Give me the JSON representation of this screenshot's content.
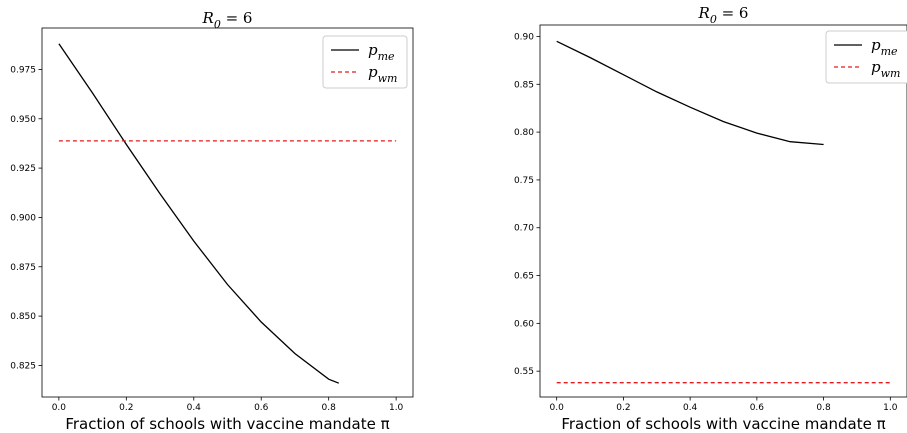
{
  "chart_data": [
    {
      "type": "line",
      "title": "R_0 = 6",
      "xlabel": "Fraction of schools with vaccine mandate π",
      "ylabel": "",
      "xlim": [
        -0.05,
        1.05
      ],
      "ylim": [
        0.809,
        0.996
      ],
      "xticks": [
        "0.0",
        "0.2",
        "0.4",
        "0.6",
        "0.8",
        "1.0"
      ],
      "yticks": [
        "0.825",
        "0.850",
        "0.875",
        "0.900",
        "0.925",
        "0.950",
        "0.975"
      ],
      "legend": "top-right",
      "series": [
        {
          "name": "p_me",
          "color": "#000000",
          "style": "solid",
          "x": [
            0.0,
            0.1,
            0.2,
            0.3,
            0.4,
            0.5,
            0.6,
            0.7,
            0.8,
            0.83
          ],
          "y": [
            0.988,
            0.963,
            0.937,
            0.912,
            0.888,
            0.866,
            0.847,
            0.831,
            0.818,
            0.816
          ]
        },
        {
          "name": "p_wm",
          "color": "#e41a1c",
          "style": "dashed",
          "x": [
            0.0,
            1.0
          ],
          "y": [
            0.9388,
            0.9388
          ]
        }
      ]
    },
    {
      "type": "line",
      "title": "R_0 = 6",
      "xlabel": "Fraction of schools with vaccine mandate π",
      "ylabel": "",
      "xlim": [
        -0.05,
        1.05
      ],
      "ylim": [
        0.523,
        0.912
      ],
      "xticks": [
        "0.0",
        "0.2",
        "0.4",
        "0.6",
        "0.8",
        "1.0"
      ],
      "yticks": [
        "0.55",
        "0.60",
        "0.65",
        "0.70",
        "0.75",
        "0.80",
        "0.85",
        "0.90"
      ],
      "legend": "top-right",
      "series": [
        {
          "name": "p_me",
          "color": "#000000",
          "style": "solid",
          "x": [
            0.0,
            0.1,
            0.2,
            0.3,
            0.4,
            0.5,
            0.6,
            0.7,
            0.8
          ],
          "y": [
            0.895,
            0.878,
            0.86,
            0.842,
            0.826,
            0.811,
            0.799,
            0.79,
            0.787
          ]
        },
        {
          "name": "p_wm",
          "color": "#e41a1c",
          "style": "dashed",
          "x": [
            0.0,
            1.0
          ],
          "y": [
            0.538,
            0.538
          ]
        }
      ]
    }
  ]
}
